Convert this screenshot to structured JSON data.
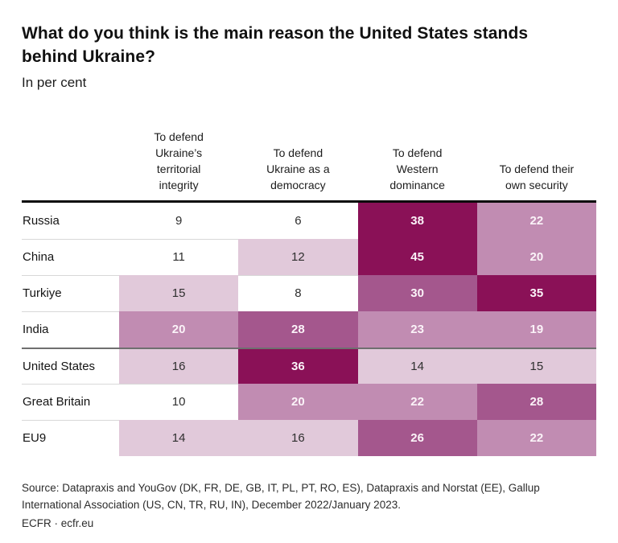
{
  "header": {
    "title": "What do you think is the main reason the United States stands behind Ukraine?",
    "subtitle": "In per cent"
  },
  "chart_data": {
    "type": "heatmap",
    "unit": "per cent",
    "columns": [
      "To defend\nUkraine’s\nterritorial\nintegrity",
      "To defend\nUkraine as a\ndemocracy",
      "To defend\nWestern\ndominance",
      "To defend their\nown security"
    ],
    "rows": [
      {
        "label": "Russia",
        "values": [
          9,
          6,
          38,
          22
        ]
      },
      {
        "label": "China",
        "values": [
          11,
          12,
          45,
          20
        ]
      },
      {
        "label": "Turkiye",
        "values": [
          15,
          8,
          30,
          35
        ]
      },
      {
        "label": "India",
        "values": [
          20,
          28,
          23,
          19
        ]
      },
      {
        "label": "United States",
        "values": [
          16,
          36,
          14,
          15
        ]
      },
      {
        "label": "Great Britain",
        "values": [
          10,
          20,
          22,
          28
        ]
      },
      {
        "label": "EU9",
        "values": [
          14,
          16,
          26,
          22
        ]
      }
    ],
    "separator_above_row": "United States",
    "color_scale": {
      "buckets": [
        {
          "min": 35,
          "color": "#8a1157"
        },
        {
          "min": 26,
          "color": "#a4578d"
        },
        {
          "min": 19,
          "color": "#c18cb2"
        },
        {
          "min": 12,
          "color": "#e1c9da"
        },
        {
          "min": 0,
          "color": "#ffffff"
        }
      ],
      "light_text_threshold": 19,
      "text_light": "#fbf3f8",
      "text_dark": "#2f2f2f",
      "top_border_color": "#0a0a0a",
      "separator_color": "#6f6f6f",
      "hairline_color": "#d8d8d8"
    }
  },
  "footer": {
    "source": "Source: Datapraxis and YouGov (DK, FR, DE, GB, IT, PL, PT, RO, ES), Datapraxis and Norstat (EE), Gallup\nInternational Association (US, CN, TR, RU, IN), December 2022/January 2023.",
    "branding": "ECFR · ecfr.eu"
  }
}
